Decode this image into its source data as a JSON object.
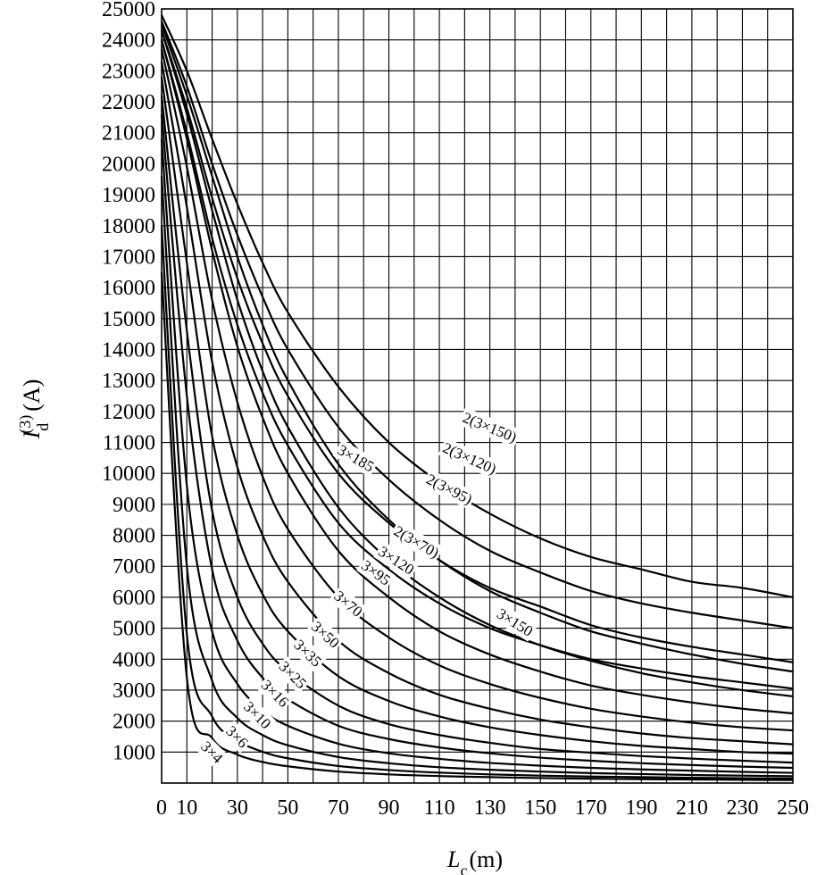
{
  "chart_data": {
    "type": "line",
    "xlabel_main": "L",
    "xlabel_sub": "c",
    "xlabel_unit": "(m)",
    "ylabel_main": "I",
    "ylabel_sub": "d",
    "ylabel_sup": "(3)",
    "ylabel_unit": "(A)",
    "xlim": [
      0,
      250
    ],
    "ylim": [
      0,
      25000
    ],
    "grid": true,
    "x_ticks": [
      0,
      10,
      30,
      50,
      70,
      90,
      110,
      130,
      150,
      170,
      190,
      210,
      230,
      250
    ],
    "x_tick_labels": [
      "0",
      "10",
      "30",
      "50",
      "70",
      "90",
      "110",
      "130",
      "150",
      "170",
      "190",
      "210",
      "230",
      "250"
    ],
    "y_ticks": [
      1000,
      2000,
      3000,
      4000,
      5000,
      6000,
      7000,
      8000,
      9000,
      10000,
      11000,
      12000,
      13000,
      14000,
      15000,
      16000,
      17000,
      18000,
      19000,
      20000,
      21000,
      22000,
      23000,
      24000,
      25000
    ],
    "y_tick_labels": [
      "1000",
      "2000",
      "3000",
      "4000",
      "5000",
      "6000",
      "7000",
      "8000",
      "9000",
      "10000",
      "11000",
      "12000",
      "13000",
      "14000",
      "15000",
      "16000",
      "17000",
      "18000",
      "19000",
      "20000",
      "21000",
      "22000",
      "23000",
      "24000",
      "25000"
    ],
    "series": [
      {
        "name": "2(3×150)",
        "label_x": 130,
        "label_y": 11500,
        "label_angle": 22,
        "x": [
          0,
          10,
          20,
          30,
          40,
          50,
          70,
          90,
          110,
          130,
          150,
          170,
          190,
          210,
          230,
          250
        ],
        "values": [
          24800,
          23000,
          20800,
          18700,
          16800,
          15200,
          12800,
          11000,
          9700,
          8700,
          7900,
          7300,
          6900,
          6500,
          6300,
          6000
        ]
      },
      {
        "name": "2(3×120)",
        "label_x": 122,
        "label_y": 10500,
        "label_angle": 24,
        "x": [
          0,
          10,
          20,
          30,
          40,
          50,
          70,
          90,
          110,
          130,
          150,
          170,
          190,
          210,
          230,
          250
        ],
        "values": [
          24600,
          22500,
          20000,
          17700,
          15700,
          14000,
          11500,
          9800,
          8500,
          7500,
          6800,
          6200,
          5800,
          5500,
          5250,
          5000
        ]
      },
      {
        "name": "2(3×95)",
        "label_x": 114,
        "label_y": 9500,
        "label_angle": 27,
        "x": [
          0,
          10,
          20,
          30,
          40,
          50,
          70,
          90,
          110,
          130,
          150,
          170,
          190,
          210,
          230,
          250
        ],
        "values": [
          24300,
          21800,
          18900,
          16300,
          14200,
          12500,
          10000,
          8400,
          7200,
          6300,
          5700,
          5100,
          4700,
          4400,
          4150,
          3900
        ]
      },
      {
        "name": "2(3×70)",
        "label_x": 101,
        "label_y": 7800,
        "label_angle": 30,
        "x": [
          0,
          10,
          20,
          30,
          40,
          50,
          70,
          90,
          110,
          130,
          150,
          170,
          190,
          210,
          230,
          250
        ],
        "values": [
          24000,
          21000,
          17600,
          14800,
          12600,
          10900,
          8400,
          6900,
          5800,
          5000,
          4450,
          4000,
          3700,
          3450,
          3250,
          3050
        ]
      },
      {
        "name": "3×185",
        "label_x": 77,
        "label_y": 10500,
        "label_angle": 30,
        "x": [
          0,
          10,
          20,
          30,
          40,
          50,
          70,
          90,
          110,
          130,
          150,
          170,
          190,
          210,
          230,
          250
        ],
        "values": [
          24500,
          22200,
          19600,
          17000,
          14800,
          13000,
          10300,
          8500,
          7200,
          6200,
          5500,
          4900,
          4500,
          4150,
          3850,
          3600
        ]
      },
      {
        "name": "3×150",
        "label_x": 140,
        "label_y": 5200,
        "label_angle": 32,
        "x": [
          0,
          10,
          20,
          30,
          40,
          50,
          70,
          90,
          110,
          130,
          150,
          170,
          190,
          210,
          230,
          250
        ],
        "values": [
          24300,
          21600,
          18500,
          15600,
          13300,
          11500,
          8900,
          7200,
          6000,
          5100,
          4450,
          3950,
          3550,
          3250,
          3000,
          2800
        ]
      },
      {
        "name": "3×120",
        "label_x": 93,
        "label_y": 7200,
        "label_angle": 33,
        "x": [
          0,
          10,
          20,
          30,
          40,
          50,
          70,
          90,
          110,
          130,
          150,
          170,
          190,
          210,
          230,
          250
        ],
        "values": [
          24000,
          20800,
          17200,
          14100,
          11800,
          10000,
          7500,
          6000,
          4900,
          4150,
          3600,
          3150,
          2850,
          2600,
          2400,
          2250
        ]
      },
      {
        "name": "3×95",
        "label_x": 85,
        "label_y": 6800,
        "label_angle": 36,
        "x": [
          0,
          10,
          20,
          30,
          40,
          50,
          70,
          90,
          110,
          130,
          150,
          170,
          190,
          210,
          230,
          250
        ],
        "values": [
          23700,
          19900,
          15600,
          12300,
          9900,
          8200,
          6000,
          4700,
          3800,
          3200,
          2750,
          2400,
          2150,
          1950,
          1800,
          1700
        ]
      },
      {
        "name": "3×70",
        "label_x": 74,
        "label_y": 5800,
        "label_angle": 40,
        "x": [
          0,
          10,
          20,
          30,
          40,
          50,
          70,
          90,
          110,
          130,
          150,
          170,
          190,
          210,
          230,
          250
        ],
        "values": [
          23300,
          18600,
          13600,
          10200,
          8000,
          6500,
          4600,
          3550,
          2850,
          2400,
          2050,
          1800,
          1600,
          1450,
          1350,
          1250
        ]
      },
      {
        "name": "3×50",
        "label_x": 65,
        "label_y": 4800,
        "label_angle": 42,
        "x": [
          0,
          10,
          20,
          30,
          40,
          50,
          70,
          90,
          110,
          130,
          150,
          170,
          190,
          210,
          230,
          250
        ],
        "values": [
          22800,
          16800,
          11200,
          8000,
          6100,
          4900,
          3450,
          2650,
          2150,
          1800,
          1550,
          1350,
          1200,
          1100,
          1000,
          950
        ]
      },
      {
        "name": "3×35",
        "label_x": 58,
        "label_y": 4200,
        "label_angle": 44,
        "x": [
          0,
          10,
          20,
          30,
          40,
          50,
          70,
          90,
          110,
          130,
          150,
          170,
          190,
          210,
          230,
          250
        ],
        "values": [
          22200,
          14600,
          8800,
          6000,
          4500,
          3600,
          2500,
          1900,
          1550,
          1300,
          1100,
          980,
          870,
          790,
          720,
          660
        ]
      },
      {
        "name": "3×25",
        "label_x": 52,
        "label_y": 3500,
        "label_angle": 45,
        "x": [
          0,
          10,
          20,
          30,
          40,
          50,
          70,
          90,
          110,
          130,
          150,
          170,
          190,
          210,
          230,
          250
        ],
        "values": [
          21600,
          12500,
          6900,
          4600,
          3400,
          2700,
          1850,
          1420,
          1150,
          960,
          820,
          720,
          640,
          580,
          530,
          490
        ]
      },
      {
        "name": "3×16",
        "label_x": 45,
        "label_y": 2900,
        "label_angle": 45,
        "x": [
          0,
          10,
          20,
          30,
          40,
          50,
          70,
          90,
          110,
          130,
          150,
          170,
          190,
          210,
          230,
          250
        ],
        "values": [
          20800,
          9600,
          4900,
          3200,
          2350,
          1850,
          1270,
          960,
          780,
          650,
          560,
          490,
          440,
          400,
          360,
          330
        ]
      },
      {
        "name": "3×10",
        "label_x": 38,
        "label_y": 2200,
        "label_angle": 45,
        "x": [
          0,
          10,
          20,
          30,
          40,
          50,
          70,
          90,
          110,
          130,
          150,
          170,
          190,
          210,
          230,
          250
        ],
        "values": [
          19600,
          7000,
          3300,
          2100,
          1550,
          1220,
          840,
          640,
          510,
          430,
          370,
          320,
          290,
          260,
          240,
          220
        ]
      },
      {
        "name": "3×6",
        "label_x": 30,
        "label_y": 1500,
        "label_angle": 45,
        "x": [
          0,
          10,
          20,
          30,
          40,
          50,
          70,
          90,
          110,
          130,
          150,
          170,
          190,
          210,
          230,
          250
        ],
        "values": [
          18000,
          4800,
          2150,
          1380,
          1010,
          800,
          550,
          420,
          335,
          280,
          240,
          210,
          190,
          170,
          155,
          145
        ]
      },
      {
        "name": "3×4",
        "label_x": 20,
        "label_y": 1000,
        "label_angle": 45,
        "x": [
          0,
          10,
          20,
          30,
          40,
          50,
          70,
          90,
          110,
          130,
          150,
          170,
          190,
          210,
          230,
          250
        ],
        "values": [
          16500,
          3400,
          1450,
          920,
          680,
          540,
          370,
          280,
          225,
          190,
          160,
          140,
          125,
          115,
          105,
          97
        ]
      }
    ]
  }
}
